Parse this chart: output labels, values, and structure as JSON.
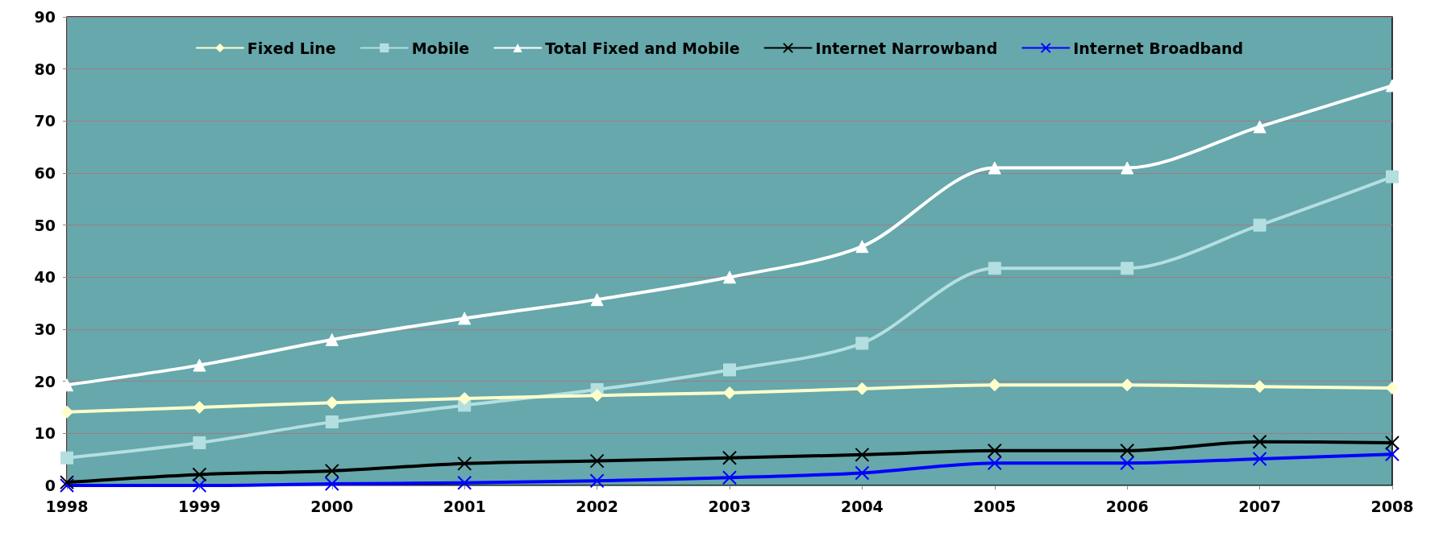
{
  "chart_data": {
    "type": "line",
    "categories": [
      "1998",
      "1999",
      "2000",
      "2001",
      "2002",
      "2003",
      "2004",
      "2005",
      "2006",
      "2007",
      "2008"
    ],
    "ylim": [
      0,
      90
    ],
    "yticks": [
      0,
      10,
      20,
      30,
      40,
      50,
      60,
      70,
      80,
      90
    ],
    "grid": "y",
    "legend": "top",
    "line_style": "solid",
    "series": [
      {
        "name": "Fixed Line",
        "color": "#ffffcc",
        "marker": "diamond",
        "values": [
          14.1,
          15,
          15.9,
          16.7,
          17.3,
          17.8,
          18.6,
          19.3,
          19.3,
          19,
          18.7
        ]
      },
      {
        "name": "Mobile",
        "color": "#b4dfe0",
        "marker": "square",
        "values": [
          5.3,
          8.2,
          12.2,
          15.4,
          18.4,
          22.2,
          27.3,
          41.7,
          41.7,
          50,
          59.3
        ]
      },
      {
        "name": "Total Fixed and Mobile",
        "color": "#ffffff",
        "marker": "triangle",
        "values": [
          19.3,
          23.1,
          28,
          32.1,
          35.7,
          40,
          45.9,
          61,
          61,
          68.9,
          76.8
        ]
      },
      {
        "name": "Internet Narrowband",
        "color": "#000000",
        "marker": "cross",
        "values": [
          0.6,
          2.1,
          2.8,
          4.2,
          4.7,
          5.3,
          5.9,
          6.7,
          6.7,
          8.4,
          8.2
        ]
      },
      {
        "name": "Internet Broadband",
        "color": "#0000ff",
        "marker": "cross",
        "values": [
          0,
          0,
          0.3,
          0.5,
          0.9,
          1.5,
          2.4,
          4.3,
          4.3,
          5.1,
          6
        ]
      }
    ]
  }
}
